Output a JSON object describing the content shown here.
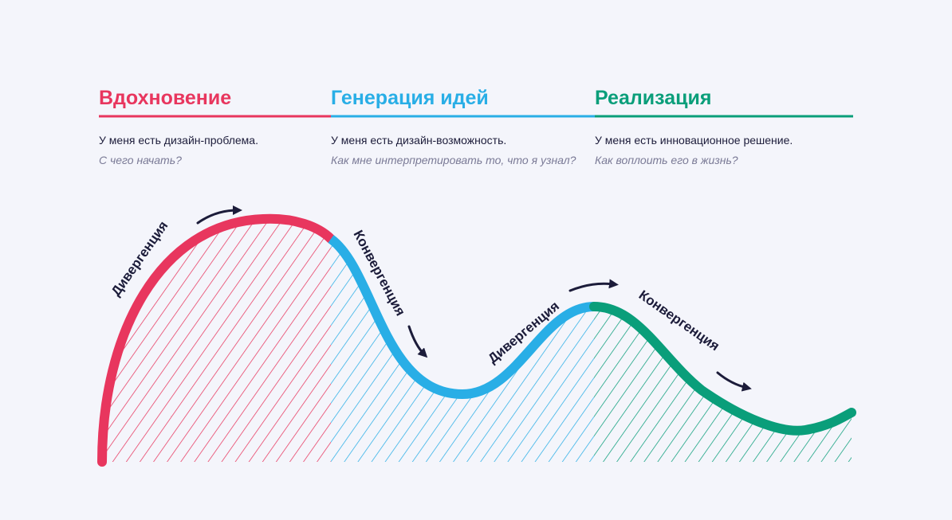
{
  "phases": [
    {
      "title": "Вдохновение",
      "statement": "У меня есть дизайн-проблема.",
      "question": "С чего начать?"
    },
    {
      "title": "Генерация идей",
      "statement": "У меня есть дизайн-возможность.",
      "question": "Как мне интерпретировать то, что я узнал?"
    },
    {
      "title": "Реализация",
      "statement": "У меня есть инновационное решение.",
      "question": "Как воплоить его в жизнь?"
    }
  ],
  "curve_labels": [
    "Дивергенция",
    "Конвергенция",
    "Дивергенция",
    "Конвергенция"
  ]
}
